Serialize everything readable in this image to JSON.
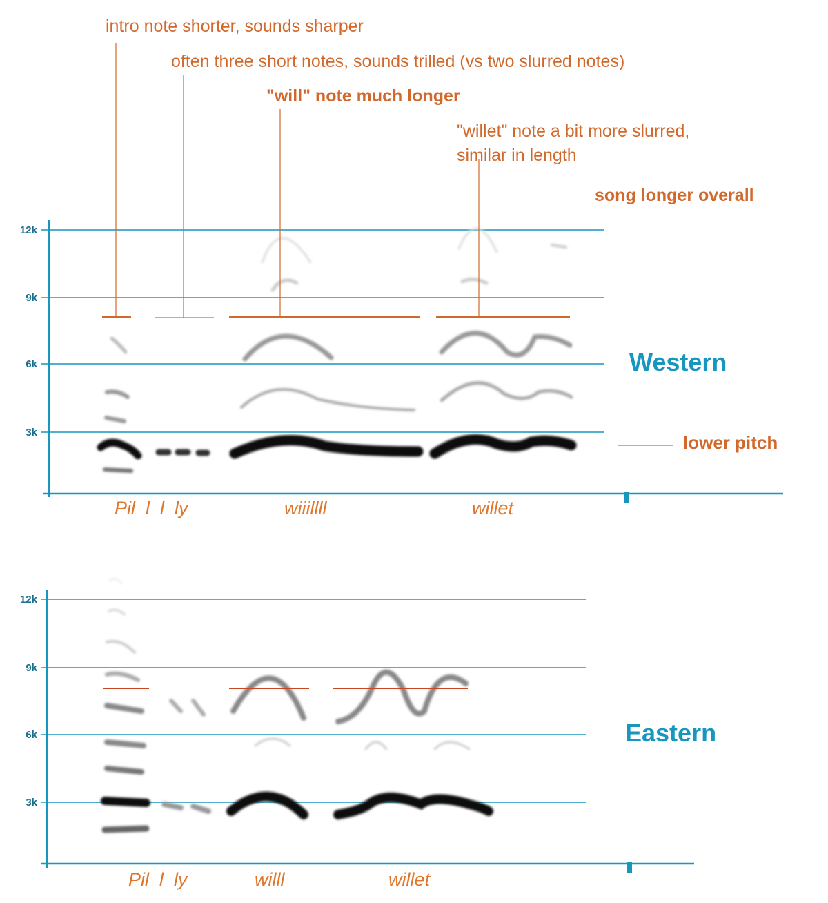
{
  "annotations": {
    "intro": "intro note shorter, sounds sharper",
    "three_notes": "often three short notes, sounds trilled (vs two slurred notes)",
    "will_note": "\"will\" note much longer",
    "willet_line1": "\"willet\" note a bit more slurred,",
    "willet_line2": "similar in length",
    "song_longer": "song longer overall",
    "lower_pitch": "lower pitch"
  },
  "panels": {
    "western": {
      "title": "Western",
      "y_ticks": [
        "12k",
        "9k",
        "6k",
        "3k"
      ],
      "syllables": [
        "Pil  l  l  ly",
        "wiiillll",
        "willet"
      ]
    },
    "eastern": {
      "title": "Eastern",
      "y_ticks": [
        "12k",
        "9k",
        "6k",
        "3k"
      ],
      "syllables": [
        "Pil  l  ly",
        "willl",
        "willet"
      ]
    }
  },
  "colors": {
    "axis": "#1796be",
    "annotation": "#d2692c",
    "spectrogram": "#1a1a1a"
  }
}
